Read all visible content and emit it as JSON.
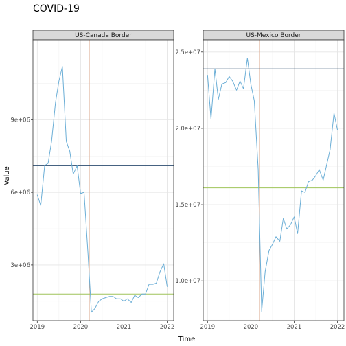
{
  "chart_data": {
    "type": "line",
    "title": "COVID-19",
    "xlabel": "Time",
    "ylabel": "Value",
    "grid": true,
    "legend": "none",
    "colors": {
      "series": "#6baed6",
      "pre_mean": "#2b4c6f",
      "post_mean": "#9fc45a",
      "intervention": "#d9a58a",
      "strip_bg": "#d9d9d9",
      "grid_major": "#e5e5e5",
      "grid_minor": "#f2f2f2"
    },
    "panels": [
      {
        "strip": "US-Canada Border",
        "xlim": [
          2018.9,
          2022.15
        ],
        "ylim": [
          700000,
          12300000
        ],
        "x_ticks": [
          2019,
          2020,
          2021,
          2022
        ],
        "x_tick_labels": [
          "2019",
          "2020",
          "2021",
          "2022"
        ],
        "y_ticks": [
          3000000,
          6000000,
          9000000
        ],
        "y_tick_labels": [
          "3e+06",
          "6e+06",
          "9e+06"
        ],
        "intervention_x": 2020.2,
        "pre_mean": 7100000,
        "post_mean": 1800000,
        "x": [
          2019.0,
          2019.08,
          2019.17,
          2019.25,
          2019.33,
          2019.42,
          2019.5,
          2019.58,
          2019.67,
          2019.75,
          2019.83,
          2019.92,
          2020.0,
          2020.08,
          2020.17,
          2020.25,
          2020.33,
          2020.42,
          2020.5,
          2020.58,
          2020.67,
          2020.75,
          2020.83,
          2020.92,
          2021.0,
          2021.08,
          2021.17,
          2021.25,
          2021.33,
          2021.42,
          2021.5,
          2021.58,
          2021.67,
          2021.75,
          2021.83,
          2021.92,
          2022.0
        ],
        "values": [
          5900000,
          5450000,
          7100000,
          7200000,
          8100000,
          9700000,
          10600000,
          11200000,
          8100000,
          7700000,
          6750000,
          7100000,
          5950000,
          6000000,
          3500000,
          1050000,
          1200000,
          1500000,
          1600000,
          1650000,
          1700000,
          1700000,
          1600000,
          1600000,
          1500000,
          1600000,
          1450000,
          1750000,
          1650000,
          1800000,
          1800000,
          2200000,
          2200000,
          2250000,
          2700000,
          3050000,
          2100000
        ]
      },
      {
        "strip": "US-Mexico Border",
        "xlim": [
          2018.9,
          2022.15
        ],
        "ylim": [
          7400000,
          25800000
        ],
        "x_ticks": [
          2019,
          2020,
          2021,
          2022
        ],
        "x_tick_labels": [
          "2019",
          "2020",
          "2021",
          "2022"
        ],
        "y_ticks": [
          10000000,
          15000000,
          20000000,
          25000000
        ],
        "y_tick_labels": [
          "1.0e+07",
          "1.5e+07",
          "2.0e+07",
          "2.5e+07"
        ],
        "intervention_x": 2020.2,
        "pre_mean": 23900000,
        "post_mean": 16100000,
        "x": [
          2019.0,
          2019.08,
          2019.17,
          2019.25,
          2019.33,
          2019.42,
          2019.5,
          2019.58,
          2019.67,
          2019.75,
          2019.83,
          2019.92,
          2020.0,
          2020.08,
          2020.17,
          2020.25,
          2020.33,
          2020.42,
          2020.5,
          2020.58,
          2020.67,
          2020.75,
          2020.83,
          2020.92,
          2021.0,
          2021.08,
          2021.17,
          2021.25,
          2021.33,
          2021.42,
          2021.5,
          2021.58,
          2021.67,
          2021.75,
          2021.83,
          2021.92,
          2022.0
        ],
        "values": [
          23500000,
          20600000,
          23900000,
          21900000,
          22900000,
          23000000,
          23400000,
          23100000,
          22500000,
          23100000,
          22600000,
          24600000,
          22900000,
          21800000,
          17300000,
          8000000,
          10600000,
          12000000,
          12400000,
          12900000,
          12600000,
          14100000,
          13400000,
          13700000,
          14200000,
          13100000,
          15900000,
          15800000,
          16500000,
          16600000,
          16900000,
          17300000,
          16600000,
          17600000,
          18600000,
          21000000,
          19900000
        ]
      }
    ]
  }
}
